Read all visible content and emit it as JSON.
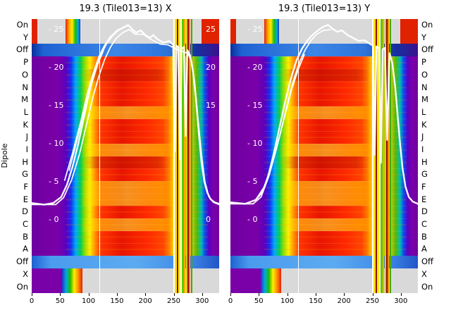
{
  "figure": {
    "ylabel": "Dipole"
  },
  "panels": [
    {
      "title": "19.3 (Tile013=13) X"
    },
    {
      "title": "19.3 (Tile013=13) Y"
    }
  ],
  "dipole_rows": [
    "On",
    "Y",
    "Off",
    "P",
    "O",
    "N",
    "M",
    "L",
    "K",
    "J",
    "I",
    "H",
    "G",
    "F",
    "E",
    "D",
    "C",
    "B",
    "A",
    "Off",
    "X",
    "On"
  ],
  "x_axis": {
    "range": [
      0,
      330
    ],
    "ticks": [
      0,
      50,
      100,
      150,
      200,
      250,
      300
    ]
  },
  "y_axis_inner": {
    "range": [
      0,
      25
    ],
    "ticks": [
      25,
      20,
      15,
      10,
      5,
      0
    ],
    "tick_prefix": "- "
  },
  "right_edge_ticks": [
    25,
    20,
    15,
    0
  ],
  "chart_data": {
    "type": "heatmap",
    "x_range": [
      0,
      330
    ],
    "x_ticks": [
      0,
      50,
      100,
      150,
      200,
      250,
      300
    ],
    "power_db_ticks": [
      25,
      20,
      15,
      10,
      5,
      0
    ],
    "power_db_range": [
      0,
      25
    ],
    "rows": [
      "On",
      "Y",
      "Off",
      "P",
      "O",
      "N",
      "M",
      "L",
      "K",
      "J",
      "I",
      "H",
      "G",
      "F",
      "E",
      "D",
      "C",
      "B",
      "A",
      "Off",
      "X",
      "On"
    ],
    "colormap": [
      "#6e00a0",
      "#1133ee",
      "#00aaff",
      "#00cc55",
      "#ffee00",
      "#ff9900",
      "#ff3300"
    ],
    "off_row_color": "#3c86e6",
    "on_row_color": "#d9d9d9",
    "curve_color": "#ffffff",
    "bright_rows": [
      "L",
      "I",
      "F",
      "E",
      "C"
    ],
    "dark_rows": [
      "O",
      "H"
    ],
    "rfi_stripes": [
      {
        "x": 250.5,
        "w": 2,
        "color": "#ffffff"
      },
      {
        "x": 254,
        "w": 2.5,
        "color": "#ffdd00"
      },
      {
        "x": 257,
        "w": 1.5,
        "color": "#8f1000"
      },
      {
        "x": 260,
        "w": 2.5,
        "color": "#ffee00"
      },
      {
        "x": 263,
        "w": 1.5,
        "color": "#ffffff"
      },
      {
        "x": 266,
        "w": 2.5,
        "color": "#55cc00"
      },
      {
        "x": 269.5,
        "w": 2,
        "color": "#ffaa00"
      },
      {
        "x": 272.5,
        "w": 2,
        "color": "#ddcc00"
      },
      {
        "x": 275.5,
        "w": 1.5,
        "color": "#8f1000"
      },
      {
        "x": 278.5,
        "w": 2,
        "color": "#ff8800"
      },
      {
        "x": 281.5,
        "w": 1.5,
        "color": "#44aa00"
      }
    ],
    "vertical_lines": [
      {
        "x": 120,
        "w": 1.4,
        "color": "#ffffff"
      }
    ],
    "panels": [
      {
        "name": "X",
        "series": [
          {
            "name": "bandpass-main",
            "points": [
              [
                0,
                2.2
              ],
              [
                22,
                2.0
              ],
              [
                38,
                2.2
              ],
              [
                52,
                3.0
              ],
              [
                62,
                4.6
              ],
              [
                72,
                7.0
              ],
              [
                82,
                10.0
              ],
              [
                92,
                13.5
              ],
              [
                102,
                17.0
              ],
              [
                112,
                19.8
              ],
              [
                122,
                21.8
              ],
              [
                132,
                23.2
              ],
              [
                142,
                24.2
              ],
              [
                152,
                24.9
              ],
              [
                162,
                25.3
              ],
              [
                170,
                25.6
              ],
              [
                176,
                25.1
              ],
              [
                184,
                24.6
              ],
              [
                192,
                24.9
              ],
              [
                200,
                24.3
              ],
              [
                208,
                23.9
              ],
              [
                214,
                24.3
              ],
              [
                222,
                23.7
              ],
              [
                232,
                23.3
              ],
              [
                242,
                23.5
              ],
              [
                249,
                23.0
              ],
              [
                252,
                9.0
              ],
              [
                255,
                22.9
              ],
              [
                258,
                22.7
              ],
              [
                261,
                8.0
              ],
              [
                264,
                22.5
              ],
              [
                268,
                22.7
              ],
              [
                271,
                11.0
              ],
              [
                274,
                22.3
              ],
              [
                279,
                21.6
              ],
              [
                284,
                19.5
              ],
              [
                289,
                16.0
              ],
              [
                294,
                11.5
              ],
              [
                299,
                7.5
              ],
              [
                304,
                5.0
              ],
              [
                309,
                3.6
              ],
              [
                315,
                2.7
              ],
              [
                322,
                2.3
              ],
              [
                330,
                2.1
              ]
            ]
          },
          {
            "name": "bandpass-2",
            "points": [
              [
                0,
                2.0
              ],
              [
                42,
                2.0
              ],
              [
                56,
                2.9
              ],
              [
                70,
                5.2
              ],
              [
                84,
                8.6
              ],
              [
                98,
                13.0
              ],
              [
                108,
                16.2
              ],
              [
                118,
                18.8
              ],
              [
                128,
                21.0
              ],
              [
                138,
                22.6
              ],
              [
                148,
                23.8
              ],
              [
                160,
                24.6
              ],
              [
                172,
                25.0
              ],
              [
                182,
                24.4
              ],
              [
                196,
                24.4
              ],
              [
                210,
                23.7
              ],
              [
                226,
                23.1
              ],
              [
                240,
                23.0
              ],
              [
                250,
                22.6
              ],
              [
                262,
                22.2
              ],
              [
                274,
                21.9
              ],
              [
                281,
                21.0
              ],
              [
                287,
                18.0
              ],
              [
                293,
                13.0
              ],
              [
                299,
                8.5
              ],
              [
                305,
                5.0
              ],
              [
                312,
                3.0
              ],
              [
                320,
                2.3
              ],
              [
                330,
                2.0
              ]
            ]
          },
          {
            "name": "bandpass-3",
            "points": [
              [
                58,
                5.2
              ],
              [
                72,
                8.8
              ],
              [
                86,
                12.8
              ],
              [
                98,
                16.6
              ],
              [
                108,
                19.2
              ],
              [
                118,
                21.4
              ],
              [
                128,
                22.9
              ],
              [
                138,
                24.0
              ],
              [
                150,
                24.9
              ],
              [
                162,
                25.3
              ]
            ]
          },
          {
            "name": "bandpass-4",
            "points": [
              [
                66,
                6.5
              ],
              [
                80,
                10.5
              ],
              [
                94,
                14.8
              ],
              [
                106,
                18.0
              ],
              [
                116,
                20.4
              ],
              [
                126,
                22.2
              ]
            ]
          }
        ]
      },
      {
        "name": "Y",
        "series": [
          {
            "name": "bandpass-main",
            "points": [
              [
                0,
                2.3
              ],
              [
                26,
                2.1
              ],
              [
                44,
                2.6
              ],
              [
                56,
                3.6
              ],
              [
                66,
                5.6
              ],
              [
                76,
                8.6
              ],
              [
                86,
                12.0
              ],
              [
                96,
                15.4
              ],
              [
                106,
                18.4
              ],
              [
                116,
                20.9
              ],
              [
                126,
                22.5
              ],
              [
                136,
                23.6
              ],
              [
                146,
                24.4
              ],
              [
                156,
                25.0
              ],
              [
                164,
                25.4
              ],
              [
                172,
                25.6
              ],
              [
                180,
                25.1
              ],
              [
                188,
                24.7
              ],
              [
                196,
                24.9
              ],
              [
                206,
                24.3
              ],
              [
                216,
                23.9
              ],
              [
                226,
                23.5
              ],
              [
                236,
                23.6
              ],
              [
                246,
                23.1
              ],
              [
                251,
                22.9
              ],
              [
                254,
                8.5
              ],
              [
                257,
                22.8
              ],
              [
                262,
                22.5
              ],
              [
                265,
                7.5
              ],
              [
                268,
                22.4
              ],
              [
                272,
                22.6
              ],
              [
                276,
                10.5
              ],
              [
                280,
                21.9
              ],
              [
                285,
                20.6
              ],
              [
                290,
                17.5
              ],
              [
                294,
                14.0
              ],
              [
                298,
                10.5
              ],
              [
                303,
                6.8
              ],
              [
                308,
                4.4
              ],
              [
                314,
                3.0
              ],
              [
                321,
                2.4
              ],
              [
                330,
                2.1
              ]
            ]
          },
          {
            "name": "bandpass-2",
            "points": [
              [
                46,
                2.8
              ],
              [
                60,
                4.4
              ],
              [
                74,
                7.6
              ],
              [
                88,
                11.4
              ],
              [
                100,
                15.2
              ],
              [
                112,
                18.6
              ],
              [
                122,
                20.8
              ],
              [
                132,
                22.4
              ],
              [
                142,
                23.6
              ],
              [
                152,
                24.4
              ],
              [
                164,
                24.9
              ],
              [
                176,
                25.0
              ]
            ]
          },
          {
            "name": "bandpass-3",
            "points": [
              [
                0,
                2.1
              ],
              [
                40,
                2.1
              ],
              [
                54,
                3.0
              ],
              [
                68,
                5.8
              ],
              [
                82,
                9.6
              ],
              [
                96,
                13.8
              ],
              [
                108,
                17.2
              ],
              [
                120,
                19.9
              ],
              [
                130,
                21.7
              ]
            ]
          }
        ]
      }
    ]
  }
}
